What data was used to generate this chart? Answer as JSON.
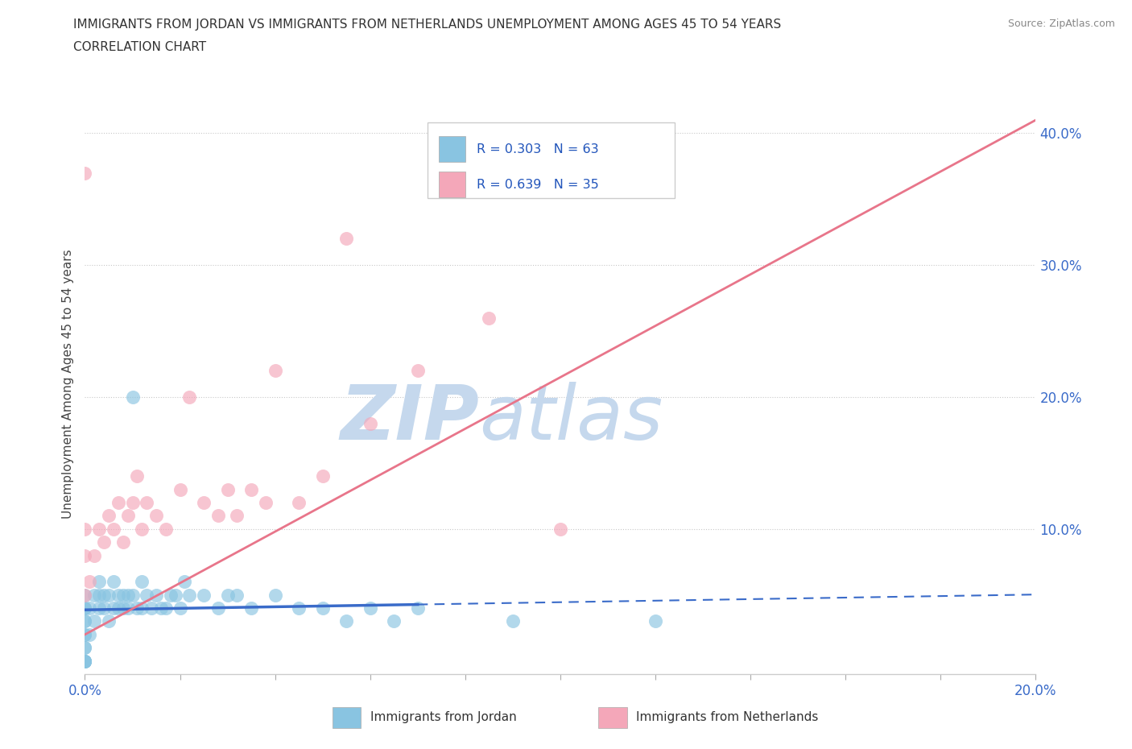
{
  "title_line1": "IMMIGRANTS FROM JORDAN VS IMMIGRANTS FROM NETHERLANDS UNEMPLOYMENT AMONG AGES 45 TO 54 YEARS",
  "title_line2": "CORRELATION CHART",
  "source": "Source: ZipAtlas.com",
  "ylabel": "Unemployment Among Ages 45 to 54 years",
  "xlim": [
    0.0,
    0.2
  ],
  "ylim": [
    -0.01,
    0.43
  ],
  "jordan_R": 0.303,
  "jordan_N": 63,
  "netherlands_R": 0.639,
  "netherlands_N": 35,
  "jordan_color": "#89C4E1",
  "netherlands_color": "#F4A7B9",
  "jordan_line_color": "#3A6BC9",
  "netherlands_line_color": "#E8758A",
  "watermark_zip": "ZIP",
  "watermark_atlas": "atlas",
  "watermark_color": "#C5D8ED",
  "background_color": "#FFFFFF",
  "jordan_x": [
    0.0,
    0.0,
    0.0,
    0.0,
    0.0,
    0.0,
    0.0,
    0.0,
    0.0,
    0.0,
    0.0,
    0.0,
    0.0,
    0.0,
    0.0,
    0.001,
    0.001,
    0.002,
    0.002,
    0.003,
    0.003,
    0.003,
    0.004,
    0.004,
    0.005,
    0.005,
    0.006,
    0.006,
    0.007,
    0.007,
    0.008,
    0.008,
    0.009,
    0.009,
    0.01,
    0.01,
    0.011,
    0.012,
    0.012,
    0.013,
    0.014,
    0.015,
    0.016,
    0.017,
    0.018,
    0.019,
    0.02,
    0.021,
    0.022,
    0.025,
    0.028,
    0.03,
    0.032,
    0.035,
    0.04,
    0.045,
    0.05,
    0.055,
    0.06,
    0.065,
    0.07,
    0.09,
    0.12
  ],
  "jordan_y": [
    0.0,
    0.0,
    0.0,
    0.0,
    0.0,
    0.0,
    0.01,
    0.01,
    0.02,
    0.02,
    0.03,
    0.03,
    0.04,
    0.04,
    0.05,
    0.02,
    0.04,
    0.03,
    0.05,
    0.04,
    0.05,
    0.06,
    0.04,
    0.05,
    0.03,
    0.05,
    0.04,
    0.06,
    0.04,
    0.05,
    0.04,
    0.05,
    0.04,
    0.05,
    0.05,
    0.2,
    0.04,
    0.04,
    0.06,
    0.05,
    0.04,
    0.05,
    0.04,
    0.04,
    0.05,
    0.05,
    0.04,
    0.06,
    0.05,
    0.05,
    0.04,
    0.05,
    0.05,
    0.04,
    0.05,
    0.04,
    0.04,
    0.03,
    0.04,
    0.03,
    0.04,
    0.03,
    0.03
  ],
  "netherlands_x": [
    0.0,
    0.0,
    0.0,
    0.0,
    0.001,
    0.002,
    0.003,
    0.004,
    0.005,
    0.006,
    0.007,
    0.008,
    0.009,
    0.01,
    0.011,
    0.012,
    0.013,
    0.015,
    0.017,
    0.02,
    0.022,
    0.025,
    0.028,
    0.03,
    0.032,
    0.035,
    0.038,
    0.04,
    0.045,
    0.05,
    0.055,
    0.06,
    0.07,
    0.085,
    0.1
  ],
  "netherlands_y": [
    0.37,
    0.05,
    0.08,
    0.1,
    0.06,
    0.08,
    0.1,
    0.09,
    0.11,
    0.1,
    0.12,
    0.09,
    0.11,
    0.12,
    0.14,
    0.1,
    0.12,
    0.11,
    0.1,
    0.13,
    0.2,
    0.12,
    0.11,
    0.13,
    0.11,
    0.13,
    0.12,
    0.22,
    0.12,
    0.14,
    0.32,
    0.18,
    0.22,
    0.26,
    0.1
  ]
}
